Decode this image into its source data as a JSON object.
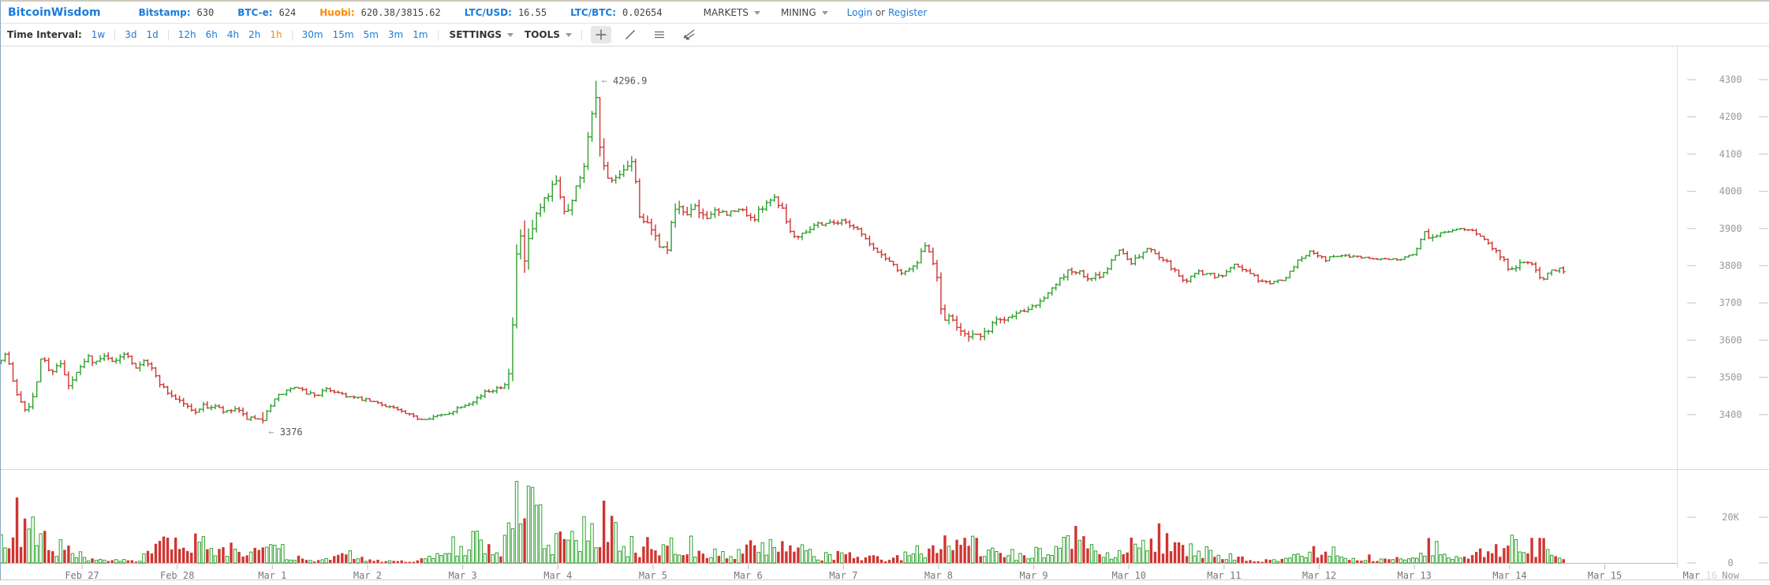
{
  "header": {
    "brand": "BitcoinWisdom",
    "tickers": [
      {
        "id": "bitstamp",
        "label": "Bitstamp:",
        "value": "630",
        "label_color": "#1B7CD9"
      },
      {
        "id": "btce",
        "label": "BTC-e:",
        "value": "624",
        "label_color": "#1B7CD9"
      },
      {
        "id": "huobi",
        "label": "Huobi:",
        "value": "620.38/3815.62",
        "label_color": "#FF8A00"
      },
      {
        "id": "ltcusd",
        "label": "LTC/USD:",
        "value": "16.55",
        "label_color": "#1B7CD9"
      },
      {
        "id": "ltcbtc",
        "label": "LTC/BTC:",
        "value": "0.02654",
        "label_color": "#1B7CD9"
      }
    ],
    "menus": [
      {
        "label": "MARKETS"
      },
      {
        "label": "MINING"
      }
    ],
    "auth": {
      "login": "Login",
      "or": "or",
      "register": "Register"
    }
  },
  "toolbar": {
    "time_interval_label": "Time Interval:",
    "interval_groups": [
      [
        "1w"
      ],
      [
        "3d",
        "1d"
      ],
      [
        "12h",
        "6h",
        "4h",
        "2h",
        "1h"
      ],
      [
        "30m",
        "15m",
        "5m",
        "3m",
        "1m"
      ]
    ],
    "active_interval": "1h",
    "settings_label": "SETTINGS",
    "tools_label": "TOOLS",
    "tool_icons": [
      "crosshair-icon",
      "trendline-icon",
      "horizontal-line-icon",
      "angle-tool-icon"
    ]
  },
  "chart_data": {
    "type": "ohlc-candlestick-with-volume",
    "interval": "1h",
    "seed": 7,
    "start_day": 0.15,
    "end_day": 16.62,
    "price_axis": {
      "side": "right",
      "ticks": [
        4300,
        4200,
        4100,
        4000,
        3900,
        3800,
        3700,
        3600,
        3500,
        3400
      ]
    },
    "volume_axis": {
      "ticks": [
        {
          "label": "20K",
          "value": 20
        },
        {
          "label": "0",
          "value": 0
        }
      ]
    },
    "x_axis": {
      "labels": [
        "Feb 27",
        "Feb 28",
        "Mar 1",
        "Mar 2",
        "Mar 3",
        "Mar 4",
        "Mar 5",
        "Mar 6",
        "Mar 7",
        "Mar 8",
        "Mar 9",
        "Mar 10",
        "Mar 11",
        "Mar 12",
        "Mar 13",
        "Mar 14",
        "Mar 15"
      ],
      "future_label": {
        "prefix": "Mar",
        "day": "16"
      },
      "now_label": "Now"
    },
    "annotations": {
      "arrow_glyph": "←",
      "high": {
        "label": "4296.9",
        "price": 4296.9,
        "day": 6.41
      },
      "low": {
        "label": "3376",
        "price": 3376,
        "day": 2.9
      }
    },
    "colors": {
      "up": "#2EA12E",
      "down": "#D03530",
      "axis_text": "#999999",
      "date_text": "#777777",
      "future_date": "#D5D5D5",
      "annotation": "#555555",
      "annotation_arrow": "#AAAAAA",
      "grid": "#CCCCCC",
      "link": "#1B7CD9",
      "active_interval": "#FF8A00"
    },
    "price_keyframes": [
      [
        0.15,
        3545
      ],
      [
        0.25,
        3565
      ],
      [
        0.33,
        3470
      ],
      [
        0.45,
        3415
      ],
      [
        0.55,
        3455
      ],
      [
        0.62,
        3570
      ],
      [
        0.7,
        3510
      ],
      [
        0.8,
        3545
      ],
      [
        0.9,
        3475
      ],
      [
        1.0,
        3515
      ],
      [
        1.1,
        3555
      ],
      [
        1.2,
        3540
      ],
      [
        1.3,
        3560
      ],
      [
        1.4,
        3540
      ],
      [
        1.5,
        3572
      ],
      [
        1.6,
        3528
      ],
      [
        1.7,
        3552
      ],
      [
        1.8,
        3510
      ],
      [
        1.9,
        3470
      ],
      [
        2.0,
        3448
      ],
      [
        2.1,
        3432
      ],
      [
        2.2,
        3408
      ],
      [
        2.32,
        3422
      ],
      [
        2.45,
        3420
      ],
      [
        2.55,
        3403
      ],
      [
        2.65,
        3415
      ],
      [
        2.75,
        3393
      ],
      [
        2.9,
        3382
      ],
      [
        3.0,
        3420
      ],
      [
        3.12,
        3452
      ],
      [
        3.25,
        3472
      ],
      [
        3.38,
        3460
      ],
      [
        3.5,
        3452
      ],
      [
        3.62,
        3468
      ],
      [
        3.75,
        3458
      ],
      [
        3.88,
        3445
      ],
      [
        4.0,
        3440
      ],
      [
        4.15,
        3430
      ],
      [
        4.3,
        3420
      ],
      [
        4.45,
        3400
      ],
      [
        4.6,
        3388
      ],
      [
        4.72,
        3394
      ],
      [
        4.85,
        3398
      ],
      [
        5.0,
        3420
      ],
      [
        5.15,
        3438
      ],
      [
        5.3,
        3462
      ],
      [
        5.45,
        3478
      ],
      [
        5.53,
        3505
      ],
      [
        5.58,
        3690
      ],
      [
        5.63,
        3905
      ],
      [
        5.68,
        3800
      ],
      [
        5.73,
        3855
      ],
      [
        5.8,
        3915
      ],
      [
        5.88,
        3958
      ],
      [
        5.95,
        3988
      ],
      [
        6.02,
        4042
      ],
      [
        6.1,
        3952
      ],
      [
        6.18,
        3965
      ],
      [
        6.27,
        4040
      ],
      [
        6.33,
        4090
      ],
      [
        6.38,
        4180
      ],
      [
        6.41,
        4245
      ],
      [
        6.46,
        4155
      ],
      [
        6.52,
        4062
      ],
      [
        6.58,
        4012
      ],
      [
        6.66,
        4035
      ],
      [
        6.74,
        4046
      ],
      [
        6.82,
        4088
      ],
      [
        6.9,
        3942
      ],
      [
        7.0,
        3896
      ],
      [
        7.1,
        3862
      ],
      [
        7.18,
        3833
      ],
      [
        7.27,
        3952
      ],
      [
        7.37,
        3944
      ],
      [
        7.47,
        3952
      ],
      [
        7.57,
        3936
      ],
      [
        7.7,
        3940
      ],
      [
        7.85,
        3942
      ],
      [
        7.98,
        3950
      ],
      [
        8.1,
        3923
      ],
      [
        8.22,
        3972
      ],
      [
        8.32,
        3984
      ],
      [
        8.42,
        3946
      ],
      [
        8.5,
        3876
      ],
      [
        8.62,
        3892
      ],
      [
        8.75,
        3912
      ],
      [
        8.9,
        3916
      ],
      [
        9.05,
        3920
      ],
      [
        9.2,
        3898
      ],
      [
        9.35,
        3846
      ],
      [
        9.5,
        3818
      ],
      [
        9.65,
        3783
      ],
      [
        9.78,
        3795
      ],
      [
        9.9,
        3849
      ],
      [
        10.0,
        3806
      ],
      [
        10.08,
        3662
      ],
      [
        10.2,
        3645
      ],
      [
        10.35,
        3618
      ],
      [
        10.5,
        3606
      ],
      [
        10.62,
        3650
      ],
      [
        10.78,
        3664
      ],
      [
        10.95,
        3684
      ],
      [
        11.1,
        3705
      ],
      [
        11.25,
        3740
      ],
      [
        11.4,
        3788
      ],
      [
        11.5,
        3784
      ],
      [
        11.62,
        3761
      ],
      [
        11.78,
        3779
      ],
      [
        11.93,
        3844
      ],
      [
        12.08,
        3809
      ],
      [
        12.25,
        3848
      ],
      [
        12.4,
        3820
      ],
      [
        12.52,
        3786
      ],
      [
        12.62,
        3758
      ],
      [
        12.78,
        3784
      ],
      [
        13.0,
        3768
      ],
      [
        13.15,
        3804
      ],
      [
        13.28,
        3786
      ],
      [
        13.42,
        3758
      ],
      [
        13.55,
        3752
      ],
      [
        13.7,
        3770
      ],
      [
        13.85,
        3824
      ],
      [
        13.95,
        3840
      ],
      [
        14.1,
        3818
      ],
      [
        14.3,
        3828
      ],
      [
        14.5,
        3822
      ],
      [
        14.7,
        3818
      ],
      [
        14.9,
        3818
      ],
      [
        15.05,
        3836
      ],
      [
        15.14,
        3886
      ],
      [
        15.25,
        3880
      ],
      [
        15.4,
        3892
      ],
      [
        15.55,
        3900
      ],
      [
        15.7,
        3888
      ],
      [
        15.82,
        3862
      ],
      [
        15.95,
        3822
      ],
      [
        16.06,
        3786
      ],
      [
        16.18,
        3812
      ],
      [
        16.28,
        3800
      ],
      [
        16.38,
        3763
      ],
      [
        16.5,
        3792
      ],
      [
        16.62,
        3788
      ]
    ],
    "volatility_keyframes": [
      [
        0.15,
        26
      ],
      [
        0.5,
        30
      ],
      [
        1.0,
        26
      ],
      [
        1.5,
        26
      ],
      [
        2.0,
        24
      ],
      [
        2.5,
        22
      ],
      [
        2.9,
        20
      ],
      [
        3.2,
        22
      ],
      [
        3.6,
        16
      ],
      [
        4.0,
        14
      ],
      [
        4.5,
        14
      ],
      [
        5.0,
        16
      ],
      [
        5.4,
        20
      ],
      [
        5.55,
        65
      ],
      [
        5.65,
        115
      ],
      [
        5.75,
        70
      ],
      [
        5.9,
        45
      ],
      [
        6.1,
        45
      ],
      [
        6.3,
        52
      ],
      [
        6.45,
        72
      ],
      [
        6.6,
        46
      ],
      [
        6.85,
        46
      ],
      [
        7.1,
        40
      ],
      [
        7.3,
        46
      ],
      [
        7.5,
        44
      ],
      [
        7.8,
        25
      ],
      [
        8.1,
        28
      ],
      [
        8.35,
        30
      ],
      [
        8.55,
        32
      ],
      [
        8.8,
        20
      ],
      [
        9.1,
        18
      ],
      [
        9.4,
        24
      ],
      [
        9.7,
        22
      ],
      [
        9.95,
        36
      ],
      [
        10.1,
        52
      ],
      [
        10.4,
        30
      ],
      [
        10.7,
        26
      ],
      [
        11.0,
        22
      ],
      [
        11.3,
        26
      ],
      [
        11.5,
        28
      ],
      [
        11.8,
        20
      ],
      [
        12.1,
        25
      ],
      [
        12.35,
        25
      ],
      [
        12.6,
        22
      ],
      [
        12.9,
        18
      ],
      [
        13.2,
        18
      ],
      [
        13.5,
        12
      ],
      [
        13.8,
        18
      ],
      [
        14.1,
        16
      ],
      [
        14.4,
        10
      ],
      [
        14.7,
        8
      ],
      [
        15.0,
        10
      ],
      [
        15.14,
        32
      ],
      [
        15.3,
        12
      ],
      [
        15.55,
        10
      ],
      [
        15.8,
        24
      ],
      [
        16.0,
        26
      ],
      [
        16.2,
        20
      ],
      [
        16.4,
        24
      ],
      [
        16.62,
        14
      ]
    ],
    "volume_keyframes": [
      [
        0.15,
        12
      ],
      [
        0.3,
        20
      ],
      [
        0.45,
        16
      ],
      [
        0.6,
        10
      ],
      [
        0.75,
        9
      ],
      [
        0.9,
        5
      ],
      [
        1.05,
        2
      ],
      [
        1.2,
        1
      ],
      [
        1.4,
        1
      ],
      [
        1.6,
        2
      ],
      [
        1.75,
        7
      ],
      [
        1.9,
        9
      ],
      [
        2.05,
        8
      ],
      [
        2.2,
        9
      ],
      [
        2.35,
        7
      ],
      [
        2.5,
        5
      ],
      [
        2.6,
        8
      ],
      [
        2.75,
        10
      ],
      [
        2.9,
        9
      ],
      [
        3.05,
        7
      ],
      [
        3.2,
        3
      ],
      [
        3.35,
        1.5
      ],
      [
        3.5,
        1
      ],
      [
        3.65,
        3
      ],
      [
        3.8,
        4
      ],
      [
        3.95,
        2
      ],
      [
        4.1,
        1
      ],
      [
        4.3,
        0.8
      ],
      [
        4.5,
        1
      ],
      [
        4.65,
        2
      ],
      [
        4.8,
        6
      ],
      [
        4.95,
        10
      ],
      [
        5.1,
        11
      ],
      [
        5.25,
        7
      ],
      [
        5.4,
        9
      ],
      [
        5.52,
        18
      ],
      [
        5.62,
        36
      ],
      [
        5.72,
        30
      ],
      [
        5.85,
        14
      ],
      [
        5.95,
        10
      ],
      [
        6.05,
        12
      ],
      [
        6.15,
        10
      ],
      [
        6.25,
        13
      ],
      [
        6.38,
        20
      ],
      [
        6.5,
        21
      ],
      [
        6.6,
        16
      ],
      [
        6.7,
        9
      ],
      [
        6.85,
        7
      ],
      [
        7.0,
        9
      ],
      [
        7.15,
        13
      ],
      [
        7.3,
        11
      ],
      [
        7.45,
        8
      ],
      [
        7.6,
        5
      ],
      [
        7.75,
        4
      ],
      [
        7.9,
        6
      ],
      [
        8.05,
        8
      ],
      [
        8.2,
        7
      ],
      [
        8.35,
        9
      ],
      [
        8.5,
        7
      ],
      [
        8.65,
        4
      ],
      [
        8.8,
        3
      ],
      [
        8.95,
        5
      ],
      [
        9.1,
        3
      ],
      [
        9.25,
        3
      ],
      [
        9.4,
        2
      ],
      [
        9.55,
        3
      ],
      [
        9.7,
        4
      ],
      [
        9.85,
        7
      ],
      [
        10.0,
        10
      ],
      [
        10.1,
        16
      ],
      [
        10.25,
        11
      ],
      [
        10.4,
        8
      ],
      [
        10.55,
        7
      ],
      [
        10.7,
        5
      ],
      [
        10.85,
        3
      ],
      [
        11.0,
        5
      ],
      [
        11.15,
        7
      ],
      [
        11.3,
        10
      ],
      [
        11.45,
        12
      ],
      [
        11.6,
        7
      ],
      [
        11.75,
        4
      ],
      [
        11.9,
        7
      ],
      [
        12.05,
        9
      ],
      [
        12.2,
        12
      ],
      [
        12.35,
        13
      ],
      [
        12.5,
        9
      ],
      [
        12.65,
        6
      ],
      [
        12.8,
        5
      ],
      [
        12.95,
        5
      ],
      [
        13.1,
        3
      ],
      [
        13.25,
        1.5
      ],
      [
        13.4,
        1
      ],
      [
        13.55,
        1.5
      ],
      [
        13.7,
        2
      ],
      [
        13.85,
        5
      ],
      [
        14.0,
        6
      ],
      [
        14.15,
        5
      ],
      [
        14.3,
        4
      ],
      [
        14.45,
        3
      ],
      [
        14.6,
        2
      ],
      [
        14.75,
        1.5
      ],
      [
        14.9,
        2
      ],
      [
        15.05,
        5
      ],
      [
        15.14,
        9
      ],
      [
        15.3,
        5
      ],
      [
        15.45,
        2.5
      ],
      [
        15.6,
        3
      ],
      [
        15.75,
        5
      ],
      [
        15.9,
        9
      ],
      [
        16.0,
        12
      ],
      [
        16.1,
        10
      ],
      [
        16.2,
        7
      ],
      [
        16.3,
        9
      ],
      [
        16.4,
        6
      ],
      [
        16.5,
        4
      ],
      [
        16.62,
        2
      ]
    ]
  }
}
